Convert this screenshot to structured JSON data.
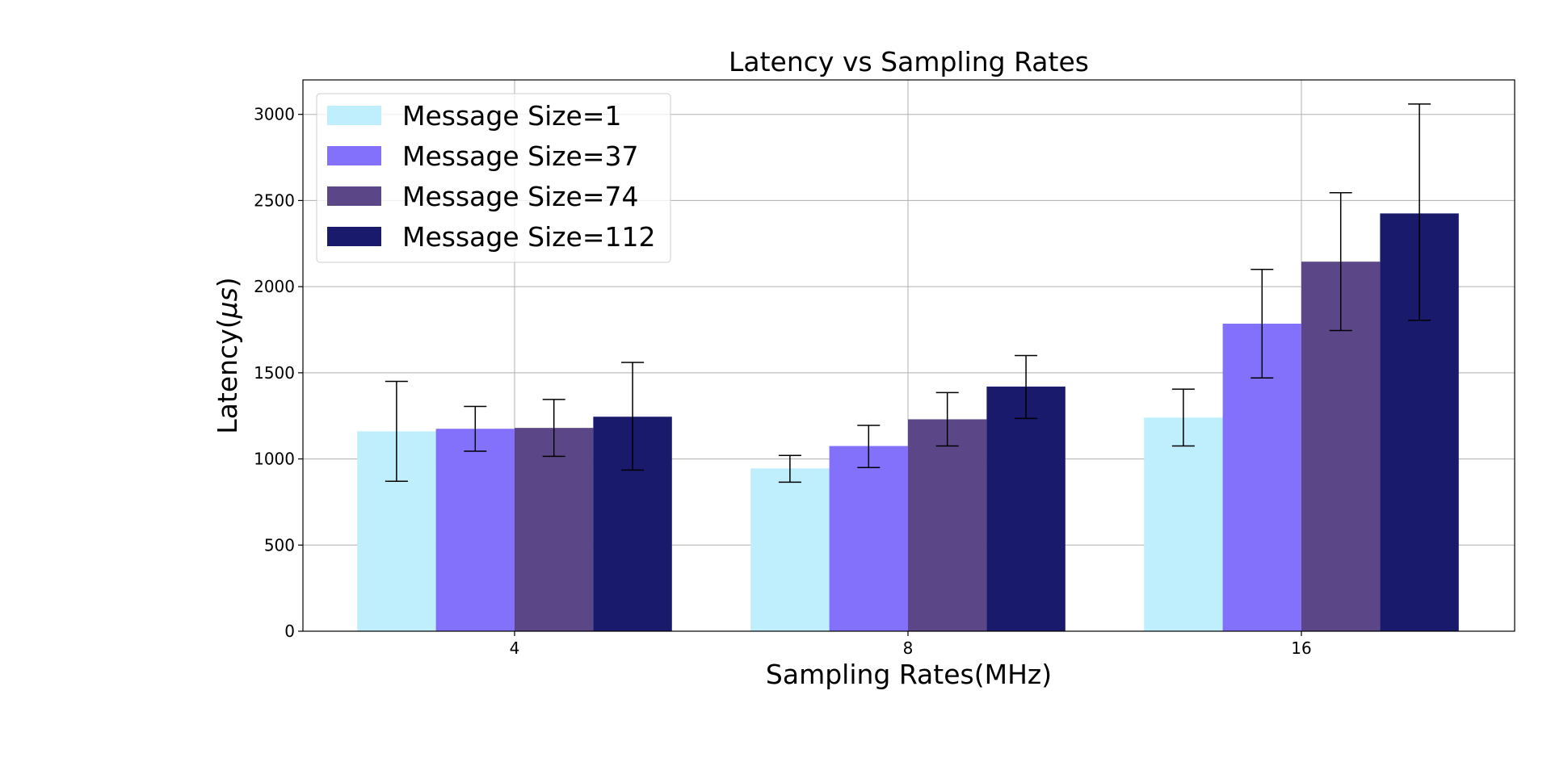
{
  "chart_data": {
    "type": "bar",
    "title": "Latency vs Sampling Rates",
    "xlabel": "Sampling Rates(MHz)",
    "ylabel_prefix": "Latency(",
    "ylabel_symbol": "μs",
    "ylabel_suffix": ")",
    "categories": [
      "4",
      "8",
      "16"
    ],
    "ylim": [
      0,
      3200
    ],
    "yticks": [
      0,
      500,
      1000,
      1500,
      2000,
      2500,
      3000
    ],
    "grid": true,
    "legend_position": "upper-left",
    "series": [
      {
        "name": "Message Size=1",
        "color": "#bfeefd",
        "values": [
          1160,
          945,
          1240
        ],
        "errors": [
          [
            870,
            1450
          ],
          [
            865,
            1020
          ],
          [
            1075,
            1405
          ]
        ]
      },
      {
        "name": "Message Size=37",
        "color": "#8471fb",
        "values": [
          1175,
          1075,
          1785
        ],
        "errors": [
          [
            1045,
            1305
          ],
          [
            950,
            1195
          ],
          [
            1470,
            2100
          ]
        ]
      },
      {
        "name": "Message Size=74",
        "color": "#5b4788",
        "values": [
          1180,
          1230,
          2145
        ],
        "errors": [
          [
            1015,
            1345
          ],
          [
            1075,
            1385
          ],
          [
            1745,
            2545
          ]
        ]
      },
      {
        "name": "Message Size=112",
        "color": "#1a1a6c",
        "values": [
          1245,
          1420,
          2425
        ],
        "errors": [
          [
            935,
            1560
          ],
          [
            1235,
            1600
          ],
          [
            1805,
            3060
          ]
        ]
      }
    ]
  }
}
